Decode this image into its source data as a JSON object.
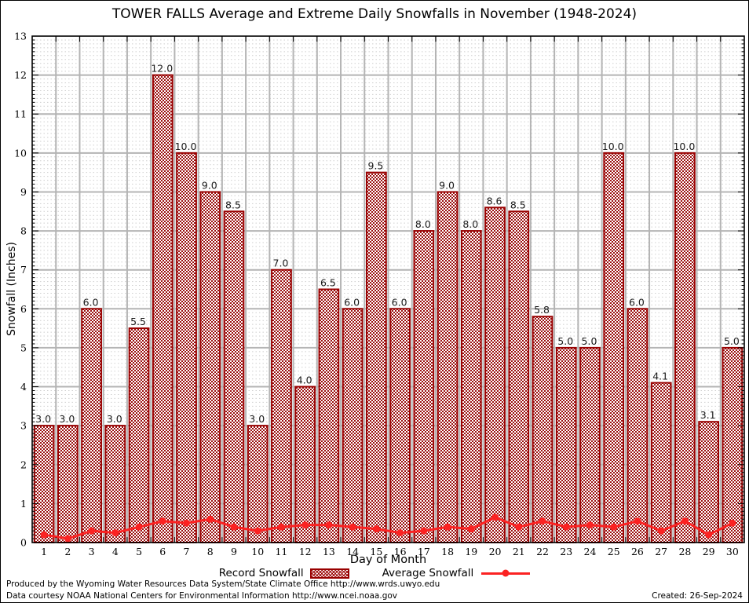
{
  "title": "TOWER FALLS Average and Extreme Daily Snowfalls in November (1948-2024)",
  "chart_data": {
    "type": "bar",
    "categories": [
      1,
      2,
      3,
      4,
      5,
      6,
      7,
      8,
      9,
      10,
      11,
      12,
      13,
      14,
      15,
      16,
      17,
      18,
      19,
      20,
      21,
      22,
      23,
      24,
      25,
      26,
      27,
      28,
      29,
      30
    ],
    "series": [
      {
        "name": "Record Snowfall",
        "type": "bar",
        "color": "#990000",
        "fill_pattern": "red-checker-on-white",
        "values": [
          3.0,
          3.0,
          6.0,
          3.0,
          5.5,
          12.0,
          10.0,
          9.0,
          8.5,
          3.0,
          7.0,
          4.0,
          6.5,
          6.0,
          9.5,
          6.0,
          8.0,
          9.0,
          8.0,
          8.6,
          8.5,
          5.8,
          5.0,
          5.0,
          10.0,
          6.0,
          4.1,
          10.0,
          3.1,
          5.0
        ]
      },
      {
        "name": "Average Snowfall",
        "type": "line",
        "color": "#fb2222",
        "marker": "circle",
        "values": [
          0.2,
          0.1,
          0.3,
          0.25,
          0.4,
          0.55,
          0.5,
          0.6,
          0.4,
          0.3,
          0.4,
          0.45,
          0.45,
          0.4,
          0.35,
          0.25,
          0.3,
          0.4,
          0.35,
          0.65,
          0.4,
          0.55,
          0.4,
          0.45,
          0.4,
          0.55,
          0.3,
          0.55,
          0.2,
          0.5
        ]
      }
    ],
    "title": "TOWER FALLS Average and Extreme Daily Snowfalls in November (1948-2024)",
    "xlabel": "Day of Month",
    "ylabel": "Snowfall (Inches)",
    "ylim": [
      0,
      13
    ],
    "y_major_step": 1,
    "y_minor_step": 0.1,
    "grid": true,
    "grid_major_color": "#b4b4b4",
    "grid_minor_color": "#cfcfcf",
    "bar_value_labels": true,
    "legend_position": "bottom"
  },
  "legend": {
    "record": "Record Snowfall",
    "average": "Average Snowfall"
  },
  "footer": {
    "line1": "Produced by the Wyoming Water Resources Data System/State Climate Office http://www.wrds.uwyo.edu",
    "line2": "Data courtesy NOAA National Centers for Environmental Information http://www.ncei.noaa.gov",
    "created": "Created: 26-Sep-2024"
  }
}
